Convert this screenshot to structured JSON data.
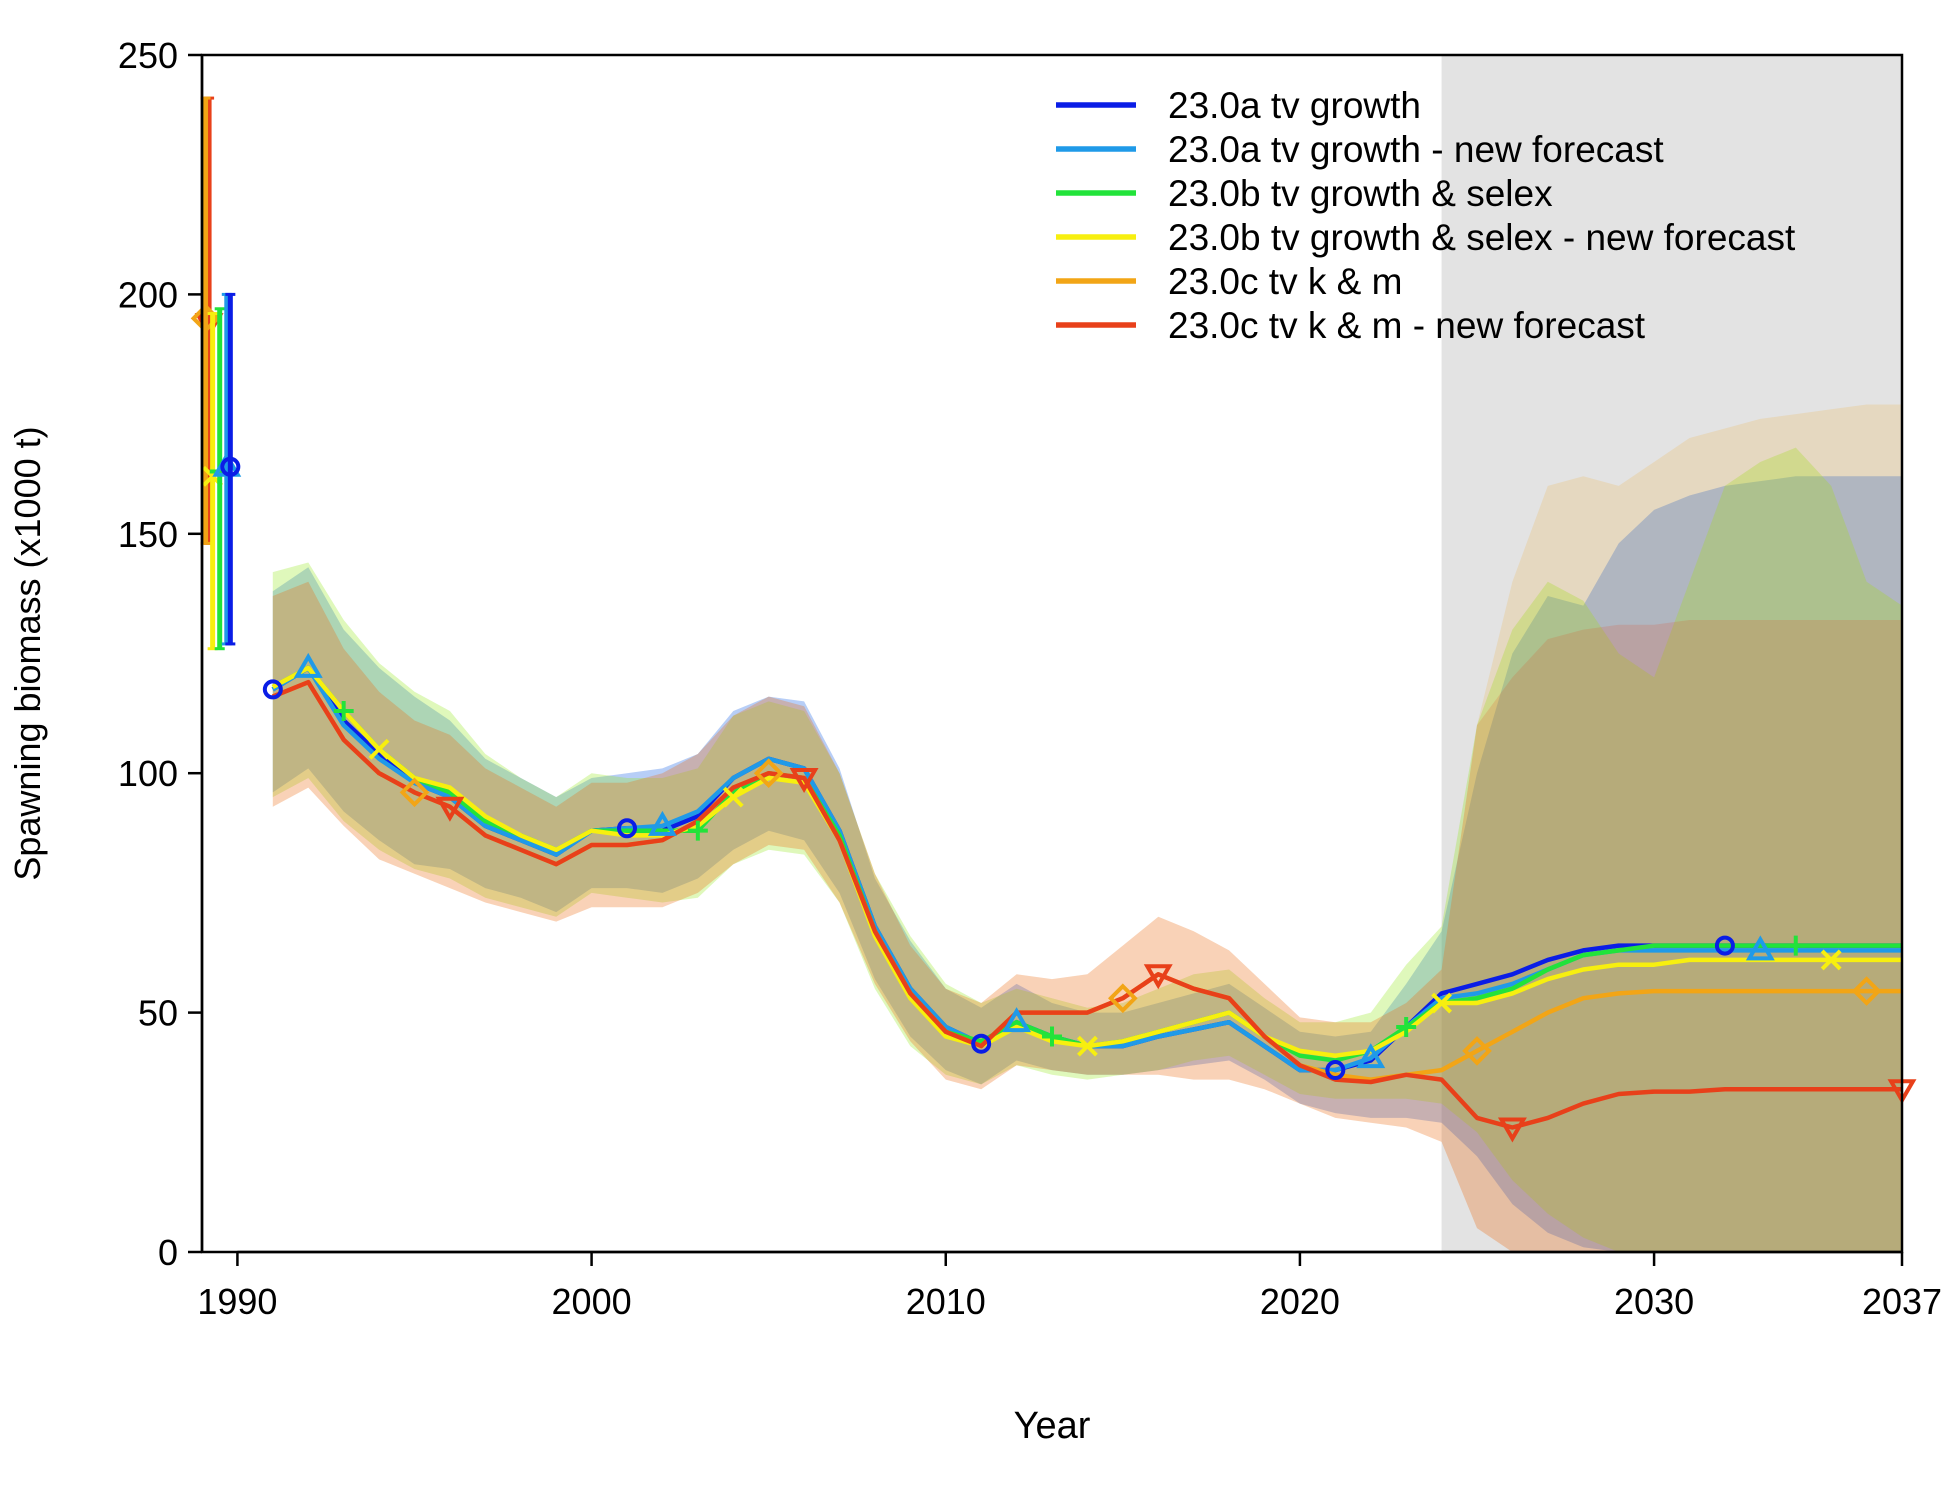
{
  "chart_data": {
    "type": "line",
    "xlabel": "Year",
    "ylabel": "Spawning biomass (x1000 t)",
    "xlim": [
      1989,
      2037
    ],
    "ylim": [
      0,
      250
    ],
    "x_ticks": [
      1990,
      2000,
      2010,
      2020,
      2030,
      2037
    ],
    "y_ticks": [
      0,
      50,
      100,
      150,
      200,
      250
    ],
    "forecast_region_start": 2024,
    "forecast_shading_color": "#e3e3e3",
    "legend_position": "top-right",
    "years": [
      1991,
      1992,
      1993,
      1994,
      1995,
      1996,
      1997,
      1998,
      1999,
      2000,
      2001,
      2002,
      2003,
      2004,
      2005,
      2006,
      2007,
      2008,
      2009,
      2010,
      2011,
      2012,
      2013,
      2014,
      2015,
      2016,
      2017,
      2018,
      2019,
      2020,
      2021,
      2022,
      2023,
      2024,
      2025,
      2026,
      2027,
      2028,
      2029,
      2030,
      2031,
      2032,
      2033,
      2034,
      2035,
      2036,
      2037
    ],
    "series": [
      {
        "name": "23.0a tv growth",
        "color": "#0a1de6",
        "marker": "circle",
        "virgin": {
          "x": 1989.8,
          "value": 164,
          "lower": 127,
          "upper": 200
        },
        "values": [
          117.5,
          122,
          111,
          104,
          98,
          95,
          89,
          86,
          83,
          88,
          88.5,
          88,
          91,
          99,
          103,
          101,
          88,
          68,
          55,
          47,
          43.5,
          48,
          45,
          43,
          43,
          45,
          46.5,
          48,
          43,
          38,
          38,
          40,
          47,
          54,
          56,
          58,
          61,
          63,
          64,
          64,
          64,
          64,
          64,
          64,
          64,
          64,
          64
        ],
        "band_lower": [
          96,
          101,
          92,
          86,
          81,
          80,
          76,
          74,
          71,
          76,
          76,
          75,
          78,
          84,
          88,
          86,
          75,
          57,
          45,
          38,
          35,
          40,
          38,
          37,
          37,
          38,
          39,
          40,
          36,
          31,
          29,
          28,
          28,
          27,
          20,
          10,
          4,
          1,
          0,
          0,
          0,
          0,
          0,
          0,
          0,
          0,
          0
        ],
        "band_upper": [
          138,
          143,
          130,
          122,
          116,
          111,
          103,
          99,
          95,
          99,
          100,
          101,
          104,
          113,
          116,
          115,
          101,
          78,
          65,
          55,
          51,
          56,
          52,
          50,
          50,
          52,
          54,
          56,
          51,
          46,
          45,
          46,
          56,
          67,
          100,
          125,
          137,
          135,
          148,
          155,
          158,
          160,
          161,
          162,
          162,
          162,
          162
        ]
      },
      {
        "name": "23.0a tv growth - new forecast",
        "color": "#1f9ae8",
        "marker": "triangle",
        "virgin": {
          "x": 1989.7,
          "value": 164,
          "lower": 127,
          "upper": 200
        },
        "values": [
          117.5,
          122,
          110,
          103,
          98,
          95,
          89,
          86,
          83,
          88,
          88.5,
          89,
          92,
          99,
          103,
          101,
          88,
          68,
          55,
          47,
          43.5,
          48,
          45,
          43,
          43,
          45,
          46.5,
          48,
          43,
          38,
          38,
          40.5,
          47,
          53,
          54,
          56,
          59,
          62,
          63,
          63,
          63,
          63,
          63,
          63,
          63,
          63,
          63
        ],
        "band_lower": [
          96,
          101,
          92,
          86,
          81,
          80,
          76,
          74,
          71,
          76,
          76,
          75,
          78,
          84,
          88,
          86,
          75,
          57,
          45,
          38,
          35,
          40,
          38,
          37,
          37,
          38,
          39,
          40,
          36,
          31,
          29,
          28,
          28,
          27,
          20,
          10,
          4,
          1,
          0,
          0,
          0,
          0,
          0,
          0,
          0,
          0,
          0
        ],
        "band_upper": [
          138,
          143,
          130,
          122,
          116,
          111,
          103,
          99,
          95,
          99,
          100,
          101,
          104,
          113,
          116,
          115,
          101,
          78,
          65,
          55,
          51,
          56,
          52,
          50,
          50,
          52,
          54,
          56,
          51,
          46,
          45,
          46,
          56,
          67,
          100,
          125,
          137,
          135,
          148,
          155,
          158,
          160,
          161,
          162,
          162,
          162,
          162
        ]
      },
      {
        "name": "23.0b tv growth & selex",
        "color": "#22e33a",
        "marker": "plus",
        "virgin": {
          "x": 1989.5,
          "value": 163,
          "lower": 126,
          "upper": 197
        },
        "values": [
          118,
          122,
          113,
          105,
          99,
          96,
          90,
          87,
          84,
          88,
          88,
          88,
          88,
          96,
          100,
          99,
          87,
          67,
          54,
          46,
          44,
          48,
          45,
          43,
          44,
          46,
          48,
          50,
          45,
          41,
          40,
          42,
          47,
          52,
          53,
          55,
          59,
          62,
          63,
          64,
          64,
          64,
          64,
          64,
          64,
          64,
          64
        ],
        "band_lower": [
          95,
          99,
          90,
          84,
          80,
          78,
          74,
          72,
          70,
          75,
          74,
          73,
          74,
          81,
          84,
          83,
          73,
          55,
          43,
          37,
          35,
          39,
          37,
          36,
          37,
          38,
          40,
          41,
          37,
          33,
          32,
          32,
          32,
          31,
          25,
          15,
          8,
          3,
          0,
          0,
          0,
          0,
          0,
          0,
          0,
          0,
          0
        ],
        "band_upper": [
          142,
          144,
          132,
          123,
          117,
          113,
          104,
          99,
          95,
          100,
          99,
          99,
          101,
          112,
          115,
          113,
          100,
          79,
          66,
          56,
          52,
          55,
          53,
          51,
          52,
          55,
          58,
          59,
          53,
          48,
          48,
          50,
          60,
          68,
          110,
          130,
          140,
          136,
          125,
          120,
          140,
          160,
          165,
          168,
          160,
          140,
          135
        ]
      },
      {
        "name": "23.0b tv growth & selex - new forecast",
        "color": "#f7ef0f",
        "marker": "cross",
        "virgin": {
          "x": 1989.3,
          "value": 162,
          "lower": 126,
          "upper": 196
        },
        "values": [
          118,
          122,
          113,
          105,
          99,
          97,
          91,
          87,
          84,
          88,
          87,
          87,
          89,
          95,
          99,
          98,
          86,
          66,
          53,
          45,
          43,
          47,
          44,
          43,
          44,
          46,
          48,
          50,
          45,
          42,
          41,
          42,
          46,
          52,
          52,
          54,
          57,
          59,
          60,
          60,
          61,
          61,
          61,
          61,
          61,
          61,
          61
        ],
        "band_lower": [
          95,
          99,
          90,
          84,
          80,
          78,
          74,
          72,
          70,
          75,
          74,
          73,
          74,
          81,
          84,
          83,
          73,
          55,
          43,
          37,
          35,
          39,
          37,
          36,
          37,
          38,
          40,
          41,
          37,
          33,
          32,
          32,
          32,
          31,
          25,
          15,
          8,
          3,
          0,
          0,
          0,
          0,
          0,
          0,
          0,
          0,
          0
        ],
        "band_upper": [
          142,
          144,
          132,
          123,
          117,
          113,
          104,
          99,
          95,
          100,
          99,
          99,
          101,
          112,
          115,
          113,
          100,
          79,
          66,
          56,
          52,
          55,
          53,
          51,
          52,
          55,
          58,
          59,
          53,
          48,
          48,
          50,
          60,
          68,
          110,
          130,
          140,
          136,
          125,
          120,
          140,
          160,
          165,
          168,
          160,
          140,
          135
        ]
      },
      {
        "name": "23.0c tv k & m",
        "color": "#f2a516",
        "marker": "diamond",
        "virgin": {
          "x": 1989.1,
          "value": 195,
          "lower": 148,
          "upper": 241
        },
        "values": [
          116,
          119,
          107,
          100,
          96,
          93,
          87,
          84,
          81,
          85,
          85,
          86,
          90,
          97,
          100,
          99,
          86,
          67,
          54,
          46,
          43,
          50,
          50,
          50,
          53,
          58,
          55,
          53,
          45,
          39,
          37,
          36,
          37,
          38,
          42,
          46,
          50,
          53,
          54,
          54.5,
          54.5,
          54.5,
          54.5,
          54.5,
          54.5,
          54.5,
          54.5
        ],
        "band_lower": [
          93,
          97,
          89,
          82,
          79,
          76,
          73,
          71,
          69,
          72,
          72,
          72,
          75,
          81,
          85,
          84,
          73,
          56,
          44,
          36,
          34,
          39,
          38,
          37,
          37,
          37,
          36,
          36,
          34,
          31,
          28,
          27,
          26,
          23,
          5,
          0,
          0,
          0,
          0,
          0,
          0,
          0,
          0,
          0,
          0,
          0,
          0
        ],
        "band_upper": [
          137,
          140,
          126,
          117,
          111,
          108,
          101,
          97,
          93,
          98,
          98,
          100,
          104,
          112,
          116,
          114,
          100,
          79,
          64,
          55,
          52,
          58,
          57,
          58,
          64,
          70,
          67,
          63,
          56,
          49,
          48,
          48,
          52,
          59,
          110,
          140,
          160,
          162,
          160,
          165,
          170,
          172,
          174,
          175,
          176,
          177,
          177
        ]
      },
      {
        "name": "23.0c tv k & m - new forecast",
        "color": "#e8401a",
        "marker": "triangle-down",
        "virgin": {
          "x": 1989.2,
          "value": 194,
          "lower": 148,
          "upper": 241
        },
        "values": [
          116,
          119,
          107,
          100,
          96,
          93,
          87,
          84,
          81,
          85,
          85,
          86,
          90,
          97,
          100,
          99,
          86,
          67,
          54,
          46,
          43,
          50,
          50,
          50,
          53,
          58,
          55,
          53,
          45,
          39,
          36,
          35.5,
          37,
          36,
          28,
          26,
          28,
          31,
          33,
          33.5,
          33.5,
          34,
          34,
          34,
          34,
          34,
          34
        ],
        "band_lower": [
          93,
          97,
          89,
          82,
          79,
          76,
          73,
          71,
          69,
          72,
          72,
          72,
          75,
          81,
          85,
          84,
          73,
          56,
          44,
          36,
          34,
          39,
          38,
          37,
          37,
          37,
          36,
          36,
          34,
          31,
          28,
          27,
          26,
          23,
          5,
          0,
          0,
          0,
          0,
          0,
          0,
          0,
          0,
          0,
          0,
          0,
          0
        ],
        "band_upper": [
          137,
          140,
          126,
          117,
          111,
          108,
          101,
          97,
          93,
          98,
          98,
          100,
          104,
          112,
          116,
          114,
          100,
          79,
          64,
          55,
          52,
          58,
          57,
          58,
          64,
          70,
          67,
          63,
          56,
          49,
          48,
          48,
          52,
          59,
          110,
          120,
          128,
          130,
          131,
          131,
          132,
          132,
          132,
          132,
          132,
          132,
          132
        ]
      }
    ],
    "markers": [
      {
        "series": 0,
        "x": [
          1991,
          2001,
          2011,
          2021,
          2032
        ]
      },
      {
        "series": 1,
        "x": [
          1992,
          2002,
          2012,
          2022,
          2033
        ]
      },
      {
        "series": 2,
        "x": [
          1993,
          2003,
          2013,
          2023,
          2034
        ]
      },
      {
        "series": 3,
        "x": [
          1994,
          2004,
          2014,
          2024,
          2035
        ]
      },
      {
        "series": 4,
        "x": [
          1995,
          2005,
          2015,
          2025,
          2036
        ]
      },
      {
        "series": 5,
        "x": [
          1996,
          2006,
          2016,
          2026,
          2037
        ]
      }
    ]
  }
}
